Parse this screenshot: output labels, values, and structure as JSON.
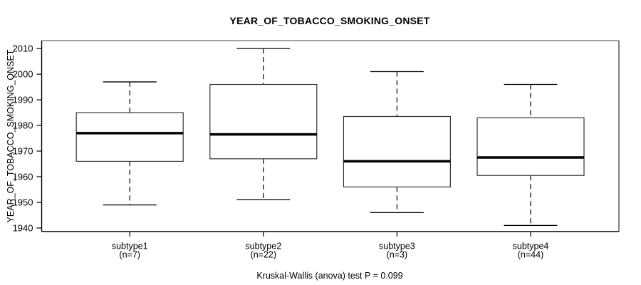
{
  "chart_data": {
    "type": "box",
    "title": "YEAR_OF_TOBACCO_SMOKING_ONSET",
    "ylabel": "YEAR_OF_TOBACCO_SMOKING_ONSET",
    "footnote": "Kruskal-Wallis (anova) test P = 0.099",
    "ylim": [
      1938.6,
      2013.1
    ],
    "yticks": [
      1940,
      1950,
      1960,
      1970,
      1980,
      1990,
      2000,
      2010
    ],
    "grid": false,
    "legend": "none",
    "groups": [
      {
        "label": "subtype1",
        "n": 7,
        "n_label": "(n=7)",
        "whisker_low": 1949,
        "q1": 1966,
        "median": 1977,
        "q3": 1985,
        "whisker_high": 1997
      },
      {
        "label": "subtype2",
        "n": 22,
        "n_label": "(n=22)",
        "whisker_low": 1951,
        "q1": 1967,
        "median": 1976.5,
        "q3": 1996,
        "whisker_high": 2010
      },
      {
        "label": "subtype3",
        "n": 3,
        "n_label": "(n=3)",
        "whisker_low": 1946,
        "q1": 1956,
        "median": 1966,
        "q3": 1983.5,
        "whisker_high": 2001
      },
      {
        "label": "subtype4",
        "n": 44,
        "n_label": "(n=44)",
        "whisker_low": 1941,
        "q1": 1960.5,
        "median": 1967.5,
        "q3": 1983,
        "whisker_high": 1996
      }
    ],
    "colors": {
      "line": "#000000",
      "box_stroke": "#333333",
      "box_fill": "#ffffff",
      "frame_top": "#828282",
      "frame_side": "#4d4d4d",
      "background": "#ffffff"
    }
  }
}
